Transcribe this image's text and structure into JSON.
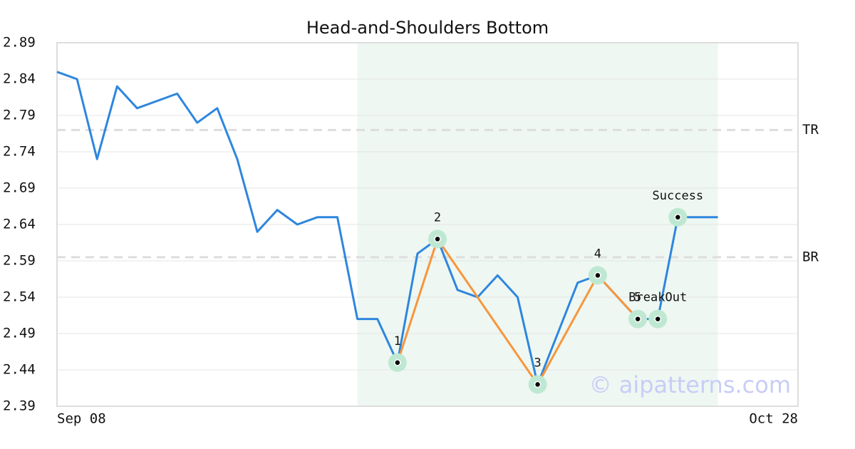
{
  "chart_data": {
    "type": "line",
    "title": "Head-and-Shoulders Bottom",
    "categories": [
      "Sep 08",
      null,
      null,
      null,
      null,
      null,
      null,
      null,
      null,
      null,
      null,
      null,
      null,
      null,
      null,
      null,
      null,
      null,
      null,
      null,
      null,
      null,
      null,
      null,
      null,
      null,
      null,
      null,
      null,
      null,
      null,
      null,
      null,
      null,
      null,
      null,
      null,
      "Oct 28"
    ],
    "series": [
      {
        "color": "#2e86de",
        "values": [
          2.85,
          2.84,
          2.73,
          2.83,
          2.8,
          2.81,
          2.82,
          2.78,
          2.8,
          2.73,
          2.63,
          2.66,
          2.64,
          2.65,
          2.65,
          2.51,
          2.51,
          2.45,
          2.6,
          2.62,
          2.55,
          2.54,
          2.57,
          2.54,
          2.42,
          2.49,
          2.56,
          2.57,
          2.54,
          2.51,
          2.51,
          2.65,
          2.65,
          2.65,
          null,
          null,
          null,
          null
        ]
      }
    ],
    "ylim": [
      2.39,
      2.89
    ],
    "yticks": [
      2.39,
      2.44,
      2.49,
      2.54,
      2.59,
      2.64,
      2.69,
      2.74,
      2.79,
      2.84,
      2.89
    ],
    "grid": true,
    "highlight": [
      15,
      33
    ],
    "hlines": [
      {
        "label": "TR",
        "value": 2.77
      },
      {
        "label": "BR",
        "value": 2.595
      }
    ],
    "pattern": {
      "color": "#f7963c",
      "points": [
        {
          "label": "1",
          "x": 17,
          "value": 2.45
        },
        {
          "label": "2",
          "x": 19,
          "value": 2.62
        },
        {
          "label": "3",
          "x": 24,
          "value": 2.42
        },
        {
          "label": "4",
          "x": 27,
          "value": 2.57
        },
        {
          "label": "5",
          "x": 29,
          "value": 2.51
        },
        {
          "label": "BreakOut",
          "x": 30,
          "value": 2.51
        },
        {
          "label": "Success",
          "x": 31,
          "value": 2.65
        }
      ]
    },
    "watermark": "© aipatterns.com"
  }
}
